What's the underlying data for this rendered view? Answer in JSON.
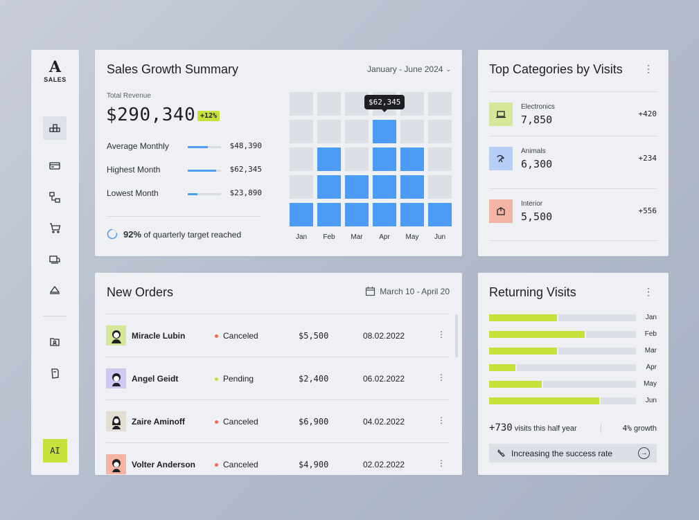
{
  "brand": {
    "letter": "A",
    "name": "SALES"
  },
  "sidebar": {
    "items": [
      {
        "icon": "blocks-icon",
        "active": true
      },
      {
        "icon": "wallet-icon"
      },
      {
        "icon": "nodes-icon"
      },
      {
        "icon": "cart-icon"
      },
      {
        "icon": "truck-icon"
      },
      {
        "icon": "tag-icon"
      },
      {
        "icon": "user-folder-icon"
      },
      {
        "icon": "document-icon"
      }
    ],
    "ai_label": "AI"
  },
  "sales_summary": {
    "title": "Sales Growth Summary",
    "period": "January - June 2024",
    "total_label": "Total Revenue",
    "total_value": "$290,340",
    "change_badge": "+12%",
    "stats": [
      {
        "label": "Average Monthly",
        "value": "$48,390",
        "fraction": 0.6
      },
      {
        "label": "Highest Month",
        "value": "$62,345",
        "fraction": 0.85
      },
      {
        "label": "Lowest Month",
        "value": "$23,890",
        "fraction": 0.3
      }
    ],
    "target_percent": "92%",
    "target_text": "of quarterly target reached",
    "tooltip": "$62,345"
  },
  "chart_data": {
    "type": "heatmap",
    "categories": [
      "Jan",
      "Feb",
      "Mar",
      "Apr",
      "May",
      "Jun"
    ],
    "values": [
      1,
      3,
      2,
      4,
      3,
      1
    ],
    "ylim": [
      0,
      5
    ],
    "highlight_category": "Apr",
    "highlight_label": "$62,345",
    "colors": {
      "filled": "#4c9cf6",
      "empty": "#dcdfe5"
    }
  },
  "categories": {
    "title": "Top Categories by Visits",
    "items": [
      {
        "name": "Electronics",
        "value": "7,850",
        "delta": "+420",
        "color": "#d6e79a",
        "icon": "laptop-icon"
      },
      {
        "name": "Animals",
        "value": "6,300",
        "delta": "+234",
        "color": "#b6cdf5",
        "icon": "dog-icon"
      },
      {
        "name": "Interior",
        "value": "5,500",
        "delta": "+556",
        "color": "#f3b4a4",
        "icon": "box-icon"
      }
    ]
  },
  "orders": {
    "title": "New Orders",
    "date_range": "March 10 - April 20",
    "rows": [
      {
        "name": "Miracle Lubin",
        "status": "Canceled",
        "status_color": "#f26b4f",
        "amount": "$5,500",
        "date": "08.02.2022",
        "avatar_bg": "#d6e79a"
      },
      {
        "name": "Angel Geidt",
        "status": "Pending",
        "status_color": "#c6e03c",
        "amount": "$2,400",
        "date": "06.02.2022",
        "avatar_bg": "#cfc8f0"
      },
      {
        "name": "Zaire Aminoff",
        "status": "Canceled",
        "status_color": "#f26b4f",
        "amount": "$6,900",
        "date": "04.02.2022",
        "avatar_bg": "#e4ddd2"
      },
      {
        "name": "Volter Anderson",
        "status": "Canceled",
        "status_color": "#f26b4f",
        "amount": "$4,900",
        "date": "02.02.2022",
        "avatar_bg": "#f3b4a4"
      }
    ]
  },
  "returning": {
    "title": "Returning Visits",
    "months": [
      {
        "label": "Jan",
        "fraction": 0.47
      },
      {
        "label": "Feb",
        "fraction": 0.66
      },
      {
        "label": "Mar",
        "fraction": 0.47
      },
      {
        "label": "Apr",
        "fraction": 0.19
      },
      {
        "label": "May",
        "fraction": 0.37
      },
      {
        "label": "Jun",
        "fraction": 0.76
      }
    ],
    "visits_value": "+730",
    "visits_text": "visits this half year",
    "growth_value": "4%",
    "growth_text": "growth",
    "success_text": "Increasing the success rate"
  }
}
